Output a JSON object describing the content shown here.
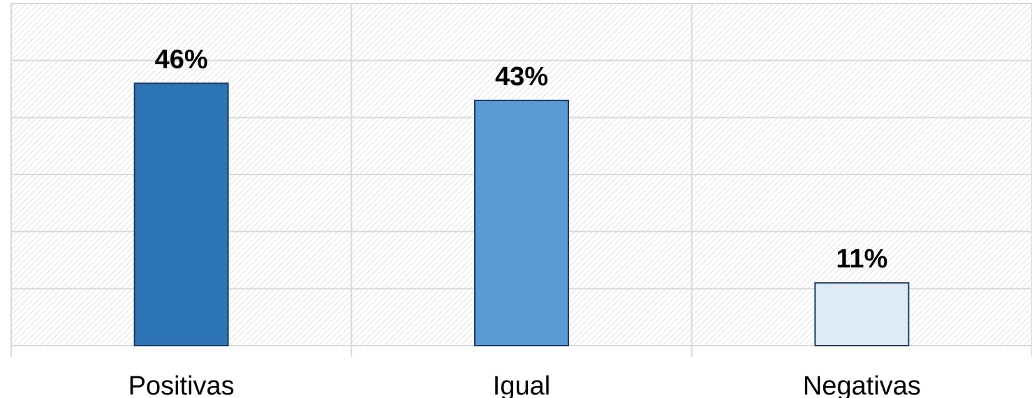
{
  "chart_data": {
    "type": "bar",
    "categories": [
      "Positivas",
      "Igual",
      "Negativas"
    ],
    "values": [
      46,
      43,
      11
    ],
    "data_labels": [
      "46%",
      "43%",
      "11%"
    ],
    "colors": [
      "#2e75b6",
      "#5b9bd5",
      "#deebf7"
    ],
    "ylim": [
      0,
      60
    ],
    "grid": true,
    "legend": "none",
    "title": "",
    "xlabel": "",
    "ylabel": ""
  }
}
